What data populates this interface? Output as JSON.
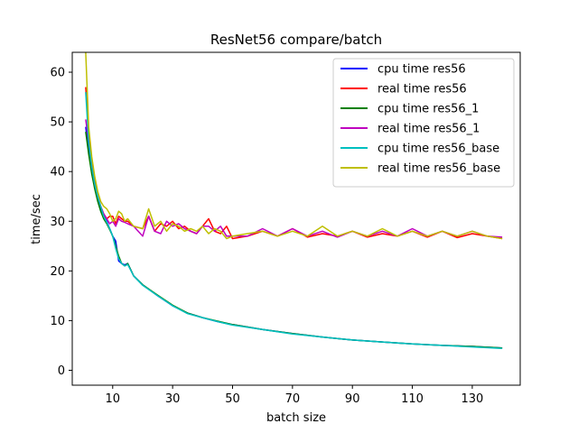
{
  "chart_data": {
    "type": "line",
    "title": "ResNet56 compare/batch",
    "xlabel": "batch size",
    "ylabel": "time/sec",
    "xlim": [
      -3.5,
      146
    ],
    "ylim": [
      -3,
      64
    ],
    "xticks": [
      10,
      30,
      50,
      70,
      90,
      110,
      130
    ],
    "yticks": [
      0,
      10,
      20,
      30,
      40,
      50,
      60
    ],
    "legend_position": "upper-right",
    "grid": false,
    "series": [
      {
        "name": "cpu time res56",
        "color": "#0000ff",
        "x": [
          1,
          2,
          3,
          4,
          5,
          6,
          7,
          8,
          9,
          10,
          11,
          12,
          13,
          14,
          15,
          17,
          20,
          25,
          30,
          35,
          40,
          45,
          50,
          60,
          70,
          80,
          90,
          100,
          110,
          120,
          130,
          140
        ],
        "y": [
          49,
          44,
          40,
          37,
          34.5,
          32.5,
          31,
          30,
          28.5,
          27,
          26,
          22,
          21.5,
          21.2,
          21.5,
          19,
          17.2,
          15,
          13,
          11.5,
          10.6,
          9.8,
          9.2,
          8.2,
          7.4,
          6.7,
          6.1,
          5.7,
          5.3,
          5.0,
          4.8,
          4.5
        ]
      },
      {
        "name": "real time res56",
        "color": "#ff0000",
        "x": [
          1,
          2,
          3,
          4,
          5,
          6,
          7,
          8,
          9,
          10,
          11,
          12,
          13,
          14,
          15,
          17,
          20,
          22,
          24,
          26,
          28,
          30,
          32,
          34,
          36,
          38,
          40,
          42,
          44,
          46,
          48,
          50,
          55,
          60,
          65,
          70,
          75,
          80,
          85,
          90,
          95,
          100,
          105,
          110,
          115,
          120,
          125,
          130,
          135,
          140
        ],
        "y": [
          57,
          48,
          42,
          38,
          35,
          33,
          31.5,
          30.5,
          31,
          31,
          29.5,
          31,
          30.5,
          30,
          30,
          29,
          28.5,
          31,
          28,
          29.5,
          29,
          30,
          28.5,
          29,
          28,
          27.5,
          29,
          30.5,
          28,
          27.5,
          29,
          26.5,
          27,
          28,
          27,
          28.5,
          26.8,
          27.5,
          27,
          28,
          26.8,
          27.5,
          27,
          28,
          26.8,
          28,
          26.7,
          27.5,
          27,
          26.5
        ]
      },
      {
        "name": "cpu time res56_1",
        "color": "#008000",
        "x": [
          1,
          2,
          3,
          4,
          5,
          6,
          7,
          8,
          9,
          10,
          11,
          12,
          13,
          14,
          15,
          17,
          20,
          25,
          30,
          35,
          40,
          45,
          50,
          60,
          70,
          80,
          90,
          100,
          110,
          120,
          130,
          140
        ],
        "y": [
          48,
          43.5,
          39.5,
          36.5,
          34,
          32,
          30.5,
          29.5,
          28.3,
          27,
          25,
          23,
          21.5,
          21,
          21.5,
          19,
          17.2,
          15.1,
          13.1,
          11.5,
          10.6,
          9.9,
          9.2,
          8.2,
          7.4,
          6.7,
          6.1,
          5.7,
          5.3,
          5.0,
          4.8,
          4.5
        ]
      },
      {
        "name": "real time res56_1",
        "color": "#bf00bf",
        "x": [
          1,
          2,
          3,
          4,
          5,
          6,
          7,
          8,
          9,
          10,
          11,
          12,
          13,
          14,
          15,
          17,
          20,
          22,
          24,
          26,
          28,
          30,
          32,
          34,
          36,
          38,
          40,
          42,
          44,
          46,
          48,
          50,
          55,
          60,
          65,
          70,
          75,
          80,
          85,
          90,
          95,
          100,
          105,
          110,
          115,
          120,
          125,
          130,
          135,
          140
        ],
        "y": [
          50.5,
          46,
          41,
          37.5,
          35,
          33,
          31.5,
          30.5,
          29.5,
          30,
          29,
          30.5,
          30,
          29.8,
          29.5,
          29,
          27,
          31,
          28,
          27.5,
          30,
          29,
          29.5,
          28.5,
          28,
          27.5,
          29,
          29,
          28,
          29,
          27,
          27,
          27,
          28.5,
          27,
          28.5,
          27,
          28,
          26.8,
          28,
          27,
          28,
          27,
          28.5,
          27,
          28,
          27,
          28,
          27,
          26.8
        ]
      },
      {
        "name": "cpu time res56_base",
        "color": "#00bfbf",
        "x": [
          1,
          2,
          3,
          4,
          5,
          6,
          7,
          8,
          9,
          10,
          11,
          12,
          13,
          14,
          15,
          17,
          20,
          25,
          30,
          35,
          40,
          45,
          50,
          60,
          70,
          80,
          90,
          100,
          110,
          120,
          130,
          140
        ],
        "y": [
          56,
          46,
          41,
          37.5,
          35,
          33,
          31,
          29.8,
          28.5,
          27,
          24.5,
          22.5,
          21.5,
          21,
          21.3,
          19,
          17.1,
          15,
          13,
          11.4,
          10.6,
          9.8,
          9.1,
          8.2,
          7.3,
          6.7,
          6.1,
          5.7,
          5.3,
          5.0,
          4.7,
          4.4
        ]
      },
      {
        "name": "real time res56_base",
        "color": "#bfbf00",
        "x": [
          1,
          2,
          3,
          4,
          5,
          6,
          7,
          8,
          9,
          10,
          11,
          12,
          13,
          14,
          15,
          17,
          20,
          22,
          24,
          26,
          28,
          30,
          32,
          34,
          36,
          38,
          40,
          42,
          44,
          46,
          48,
          50,
          55,
          60,
          65,
          70,
          75,
          80,
          85,
          90,
          95,
          100,
          105,
          110,
          115,
          120,
          125,
          130,
          135,
          140
        ],
        "y": [
          64,
          49,
          43,
          39,
          36,
          34,
          33,
          32.5,
          31.5,
          30,
          30.5,
          32,
          31.5,
          30,
          30.5,
          29,
          28.5,
          32.5,
          29,
          30,
          28,
          29.5,
          29,
          28,
          28.5,
          28,
          29,
          27.5,
          28.5,
          28,
          26.5,
          27,
          27.5,
          28,
          27,
          28,
          27,
          29,
          27,
          28,
          27,
          28.5,
          27,
          28,
          27,
          28,
          27,
          28,
          27,
          26.5
        ]
      }
    ]
  }
}
